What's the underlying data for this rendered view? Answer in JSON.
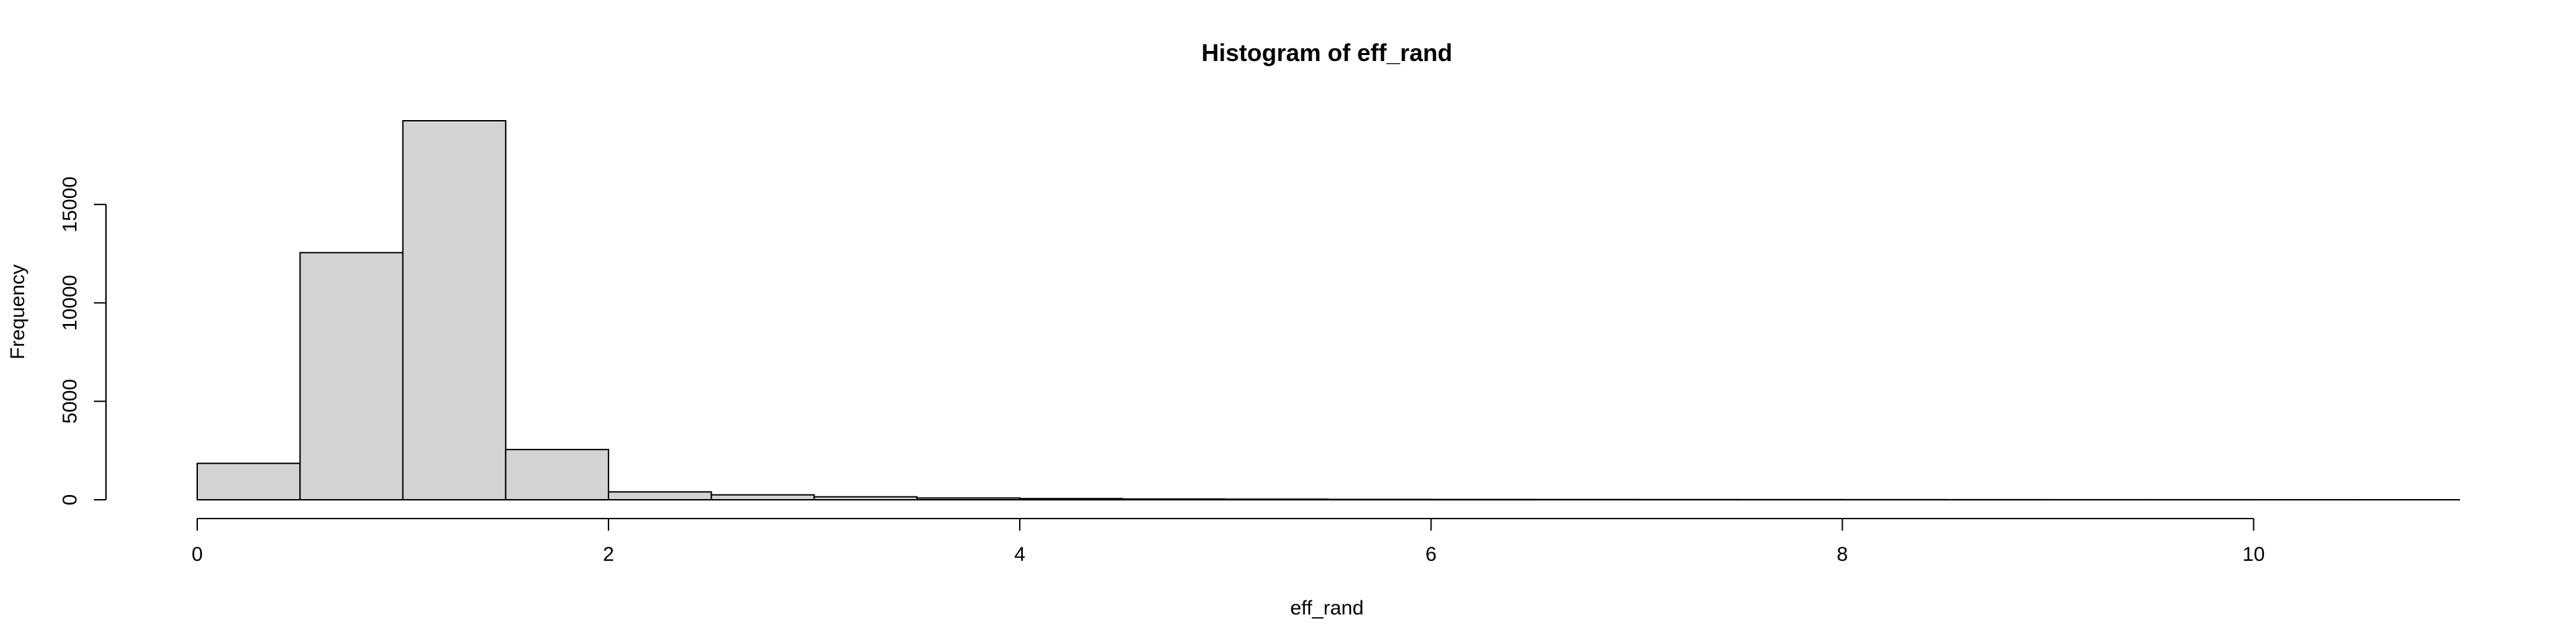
{
  "chart_data": {
    "type": "bar",
    "subtype": "histogram",
    "title": "Histogram of eff_rand",
    "xlabel": "eff_rand",
    "ylabel": "Frequency",
    "bin_edges": [
      0,
      0.5,
      1,
      1.5,
      2,
      2.5,
      3,
      3.5,
      4,
      4.5,
      5,
      5.5,
      6,
      6.5,
      7,
      7.5,
      8,
      8.5,
      9,
      9.5,
      10,
      10.5,
      11
    ],
    "values": [
      1850,
      12550,
      19250,
      2550,
      400,
      250,
      150,
      90,
      60,
      40,
      30,
      20,
      15,
      12,
      10,
      8,
      6,
      5,
      4,
      3,
      2,
      1
    ],
    "xlim": [
      0,
      11
    ],
    "ylim": [
      0,
      19250
    ],
    "x_ticks": [
      0,
      2,
      4,
      6,
      8,
      10
    ],
    "x_tick_labels": [
      "0",
      "2",
      "4",
      "6",
      "8",
      "10"
    ],
    "y_ticks": [
      0,
      5000,
      10000,
      15000
    ],
    "y_tick_labels": [
      "0",
      "5000",
      "10000",
      "15000"
    ],
    "bar_color": "#D3D3D3",
    "edge_color": "#000000",
    "grid": false,
    "legend": "none"
  }
}
